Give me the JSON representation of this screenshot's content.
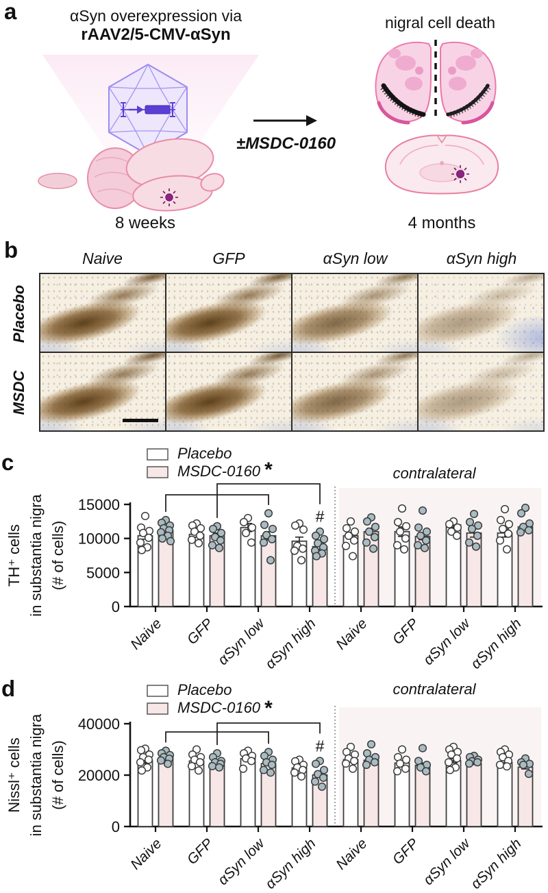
{
  "panel_labels": {
    "a": "a",
    "b": "b",
    "c": "c",
    "d": "d"
  },
  "panel_a": {
    "title_line1": "αSyn overexpression via",
    "title_line2": "rAAV2/5-CMV-αSyn",
    "right_title": "nigral cell death",
    "treatment": "±MSDC-0160",
    "time_left": "8 weeks",
    "time_right": "4 months"
  },
  "panel_b": {
    "col_headers": [
      "Naive",
      "GFP",
      "αSyn low",
      "αSyn high"
    ],
    "row_labels": [
      "Placebo",
      "MSDC"
    ],
    "stain_levels": [
      [
        "strong",
        "strong",
        "moderate",
        "weak-patchy"
      ],
      [
        "strong",
        "strong",
        "moderate",
        "weak"
      ]
    ],
    "has_scale_bar": true
  },
  "colors": {
    "accent_pink_fill": "#f7e7e7",
    "bar_stroke": "#3d3d3d",
    "point_gray_fill": "#a9bcc2",
    "point_stroke": "#3a3a3a",
    "contralateral_bg": "#f9f4f3",
    "divider_gray": "#666666",
    "aav_lavender_fill": "#eae4fc",
    "aav_purple_stroke": "#9b8cf0",
    "gene_purple": "#5b3fd4",
    "beam_pink": "#f9d9ec",
    "brain_fill": "#f7d8df",
    "brain_stroke": "#e88ca8",
    "virus_purple": "#8d2483",
    "stain_brown": "#7a5423",
    "nissl_blue": "#8ea8d8"
  },
  "chart_data": [
    {
      "id": "panel_c",
      "type": "bar",
      "ylabel_lines": [
        "TH⁺ cells",
        "in substantia nigra",
        "(# of cells)"
      ],
      "ylim": [
        0,
        15000
      ],
      "yticks": [
        0,
        5000,
        10000,
        15000
      ],
      "legend": [
        "Placebo",
        "MSDC-0160"
      ],
      "legend_star": "*",
      "section_label": "contralateral",
      "divider_after_index": 3,
      "categories": [
        "Naive",
        "GFP",
        "αSyn low",
        "αSyn high",
        "Naive",
        "GFP",
        "αSyn low",
        "αSyn high"
      ],
      "series": [
        {
          "name": "Placebo",
          "values": [
            10400,
            10600,
            11600,
            9600,
            10400,
            11000,
            12000,
            10800
          ],
          "sem": [
            500,
            400,
            600,
            600,
            500,
            700,
            400,
            600
          ],
          "points": [
            [
              13300,
              11600,
              11100,
              10800,
              10100,
              9400,
              8700,
              8300
            ],
            [
              12200,
              11900,
              11500,
              11000,
              10400,
              9800,
              9300
            ],
            [
              13000,
              12400,
              11600,
              10800,
              9400
            ],
            [
              12200,
              11900,
              11300,
              8900,
              8500,
              8200,
              6800
            ],
            [
              12500,
              11500,
              11000,
              10400,
              9700,
              8900,
              7400
            ],
            [
              14400,
              12400,
              11800,
              11000,
              10000,
              9000,
              8400
            ],
            [
              12500,
              12100,
              11600,
              11000,
              10400
            ],
            [
              14300,
              12700,
              12100,
              11400,
              10700,
              9700,
              8400
            ]
          ]
        },
        {
          "name": "MSDC-0160",
          "values": [
            11200,
            10400,
            10400,
            8800,
            11000,
            10300,
            10800,
            11700
          ],
          "sem": [
            300,
            400,
            600,
            400,
            500,
            500,
            600,
            400
          ],
          "points": [
            [
              12700,
              12300,
              11900,
              11500,
              11200,
              10900,
              10400,
              10000,
              9600
            ],
            [
              11800,
              11400,
              10800,
              10200,
              9700,
              9000,
              8600
            ],
            [
              13700,
              12000,
              11400,
              10500,
              9900,
              9400,
              6800
            ],
            [
              11000,
              10400,
              9900,
              9300,
              8700,
              8200,
              7800,
              7400
            ],
            [
              13100,
              12500,
              11700,
              11000,
              10200,
              9400,
              8500
            ],
            [
              14100,
              11600,
              11000,
              10400,
              9700,
              9000,
              8600
            ],
            [
              13600,
              12400,
              11900,
              11400,
              10400,
              9400,
              8800
            ],
            [
              14500,
              13700,
              12200,
              11700,
              11200,
              10900
            ]
          ]
        }
      ],
      "brackets": [
        {
          "from": {
            "cat": 0,
            "series": 1
          },
          "to": {
            "cat": 2,
            "series": 1
          },
          "tier": 1
        },
        {
          "from": {
            "cat": 1,
            "series": 1
          },
          "to": {
            "cat": 3,
            "series": 1
          },
          "tier": 2
        }
      ],
      "hash_label": {
        "text": "#",
        "cat": 3,
        "series": 1
      }
    },
    {
      "id": "panel_d",
      "type": "bar",
      "ylabel_lines": [
        "Nissl⁺ cells",
        "in substantia nigra",
        "(# of cells)"
      ],
      "ylim": [
        0,
        40000
      ],
      "yticks": [
        0,
        20000,
        40000
      ],
      "legend": [
        "Placebo",
        "MSDC-0160"
      ],
      "legend_star": "*",
      "section_label": "contralateral",
      "divider_after_index": 3,
      "categories": [
        "Naive",
        "GFP",
        "αSyn low",
        "αSyn high",
        "Naive",
        "GFP",
        "αSyn low",
        "αSyn high"
      ],
      "series": [
        {
          "name": "Placebo",
          "values": [
            25600,
            25500,
            26400,
            22800,
            26000,
            24700,
            25600,
            24900
          ],
          "sem": [
            1000,
            900,
            700,
            800,
            900,
            900,
            800,
            800
          ],
          "points": [
            [
              30300,
              29700,
              28000,
              27000,
              26000,
              25000,
              23000,
              21800
            ],
            [
              30000,
              28000,
              27000,
              26000,
              25000,
              23500,
              21800
            ],
            [
              29500,
              28500,
              27500,
              26500,
              25500,
              22500
            ],
            [
              26000,
              25400,
              24000,
              23000,
              22000,
              21000,
              19500
            ],
            [
              31000,
              29000,
              28000,
              26500,
              25500,
              24500,
              22500
            ],
            [
              30000,
              27000,
              26000,
              24500,
              22500,
              21500
            ],
            [
              31000,
              30000,
              29000,
              28000,
              26500,
              25000,
              23000,
              22000
            ],
            [
              30000,
              29000,
              28000,
              27000,
              25500,
              24000,
              23400
            ]
          ]
        },
        {
          "name": "MSDC-0160",
          "values": [
            26800,
            24700,
            24500,
            20100,
            25800,
            23800,
            24600,
            23100
          ],
          "sem": [
            500,
            600,
            700,
            900,
            700,
            900,
            500,
            700
          ],
          "points": [
            [
              29500,
              28500,
              27800,
              27000,
              26400,
              25700,
              24400
            ],
            [
              28500,
              27000,
              25500,
              25000,
              24400,
              23500,
              23000
            ],
            [
              29000,
              27500,
              26000,
              25000,
              24000,
              22000,
              21000
            ],
            [
              25500,
              24400,
              22000,
              20400,
              19000,
              17500,
              15500
            ],
            [
              32000,
              28500,
              27000,
              26000,
              25000,
              24000
            ],
            [
              30500,
              25500,
              24000,
              23000,
              21500
            ],
            [
              27500,
              27000,
              26000,
              25400,
              25000,
              24500
            ],
            [
              26500,
              25000,
              24400,
              24000,
              20500
            ]
          ]
        }
      ],
      "brackets": [
        {
          "from": {
            "cat": 0,
            "series": 1
          },
          "to": {
            "cat": 2,
            "series": 1
          },
          "tier": 1
        },
        {
          "from": {
            "cat": 1,
            "series": 1
          },
          "to": {
            "cat": 3,
            "series": 1
          },
          "tier": 2
        }
      ],
      "hash_label": {
        "text": "#",
        "cat": 3,
        "series": 1
      }
    }
  ]
}
